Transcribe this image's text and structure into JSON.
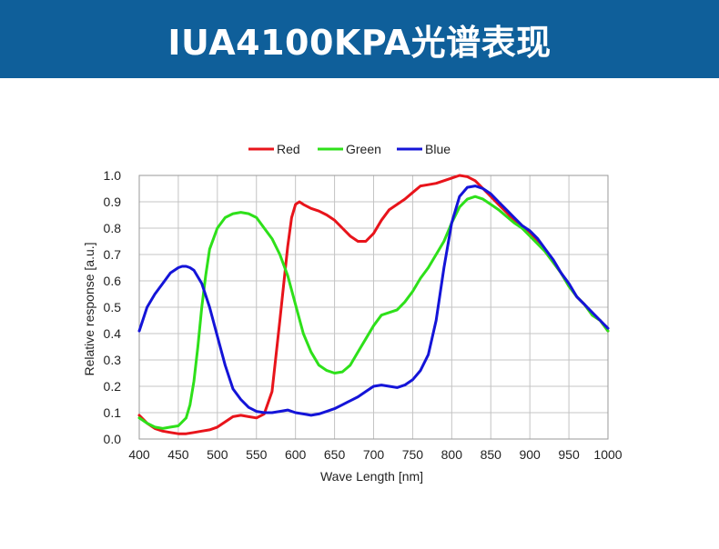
{
  "header": {
    "title": "IUA4100KPA光谱表现",
    "background_color": "#0f5f9a"
  },
  "chart_data": {
    "type": "line",
    "xlabel": "Wave Length [nm]",
    "ylabel": "Relative response [a.u.]",
    "xlim": [
      400,
      1000
    ],
    "ylim": [
      0.0,
      1.0
    ],
    "xticks": [
      400,
      450,
      500,
      550,
      600,
      650,
      700,
      750,
      800,
      850,
      900,
      950,
      1000
    ],
    "yticks": [
      "0.0",
      "0.1",
      "0.2",
      "0.3",
      "0.4",
      "0.5",
      "0.6",
      "0.7",
      "0.8",
      "0.9",
      "1.0"
    ],
    "grid": true,
    "legend_position": "top-center",
    "series": [
      {
        "name": "Red",
        "color": "#e8141b",
        "x": [
          400,
          410,
          420,
          430,
          440,
          450,
          460,
          470,
          480,
          490,
          500,
          510,
          520,
          530,
          540,
          550,
          560,
          570,
          580,
          590,
          595,
          600,
          605,
          610,
          620,
          630,
          640,
          650,
          660,
          670,
          680,
          690,
          700,
          710,
          720,
          730,
          740,
          750,
          760,
          770,
          780,
          790,
          800,
          810,
          820,
          830,
          840,
          850,
          860,
          870,
          880,
          890,
          900,
          910,
          920,
          930,
          940,
          950,
          960,
          970,
          980,
          990,
          1000
        ],
        "y": [
          0.09,
          0.06,
          0.04,
          0.03,
          0.025,
          0.02,
          0.02,
          0.025,
          0.03,
          0.035,
          0.045,
          0.065,
          0.085,
          0.09,
          0.085,
          0.08,
          0.095,
          0.18,
          0.45,
          0.73,
          0.84,
          0.89,
          0.9,
          0.89,
          0.875,
          0.865,
          0.85,
          0.83,
          0.8,
          0.77,
          0.75,
          0.75,
          0.78,
          0.83,
          0.87,
          0.89,
          0.91,
          0.935,
          0.96,
          0.965,
          0.97,
          0.98,
          0.99,
          1.0,
          0.995,
          0.98,
          0.95,
          0.92,
          0.89,
          0.86,
          0.83,
          0.8,
          0.78,
          0.75,
          0.71,
          0.67,
          0.63,
          0.58,
          0.54,
          0.51,
          0.47,
          0.45,
          0.41
        ]
      },
      {
        "name": "Green",
        "color": "#2ee01a",
        "x": [
          400,
          410,
          420,
          430,
          440,
          450,
          460,
          465,
          470,
          475,
          480,
          485,
          490,
          500,
          510,
          520,
          530,
          540,
          550,
          560,
          570,
          580,
          590,
          600,
          610,
          620,
          630,
          640,
          650,
          660,
          670,
          680,
          690,
          700,
          710,
          720,
          730,
          740,
          750,
          760,
          770,
          780,
          790,
          800,
          810,
          820,
          830,
          840,
          850,
          860,
          870,
          880,
          890,
          900,
          910,
          920,
          930,
          940,
          950,
          960,
          970,
          980,
          990,
          1000
        ],
        "y": [
          0.08,
          0.06,
          0.045,
          0.04,
          0.045,
          0.05,
          0.08,
          0.13,
          0.22,
          0.35,
          0.5,
          0.62,
          0.72,
          0.8,
          0.84,
          0.855,
          0.86,
          0.855,
          0.84,
          0.8,
          0.76,
          0.7,
          0.62,
          0.51,
          0.4,
          0.33,
          0.28,
          0.26,
          0.25,
          0.255,
          0.28,
          0.33,
          0.38,
          0.43,
          0.47,
          0.48,
          0.49,
          0.52,
          0.56,
          0.61,
          0.65,
          0.7,
          0.75,
          0.82,
          0.88,
          0.91,
          0.92,
          0.91,
          0.89,
          0.87,
          0.845,
          0.82,
          0.8,
          0.77,
          0.74,
          0.71,
          0.67,
          0.63,
          0.58,
          0.54,
          0.51,
          0.47,
          0.45,
          0.41
        ]
      },
      {
        "name": "Blue",
        "color": "#1414d8",
        "x": [
          400,
          410,
          420,
          430,
          440,
          450,
          455,
          460,
          465,
          470,
          480,
          490,
          500,
          510,
          520,
          530,
          540,
          550,
          560,
          570,
          580,
          590,
          600,
          610,
          620,
          630,
          640,
          650,
          660,
          670,
          680,
          690,
          700,
          710,
          720,
          730,
          740,
          750,
          760,
          770,
          780,
          790,
          800,
          810,
          820,
          830,
          840,
          850,
          860,
          870,
          880,
          890,
          900,
          910,
          920,
          930,
          940,
          950,
          960,
          970,
          980,
          990,
          1000
        ],
        "y": [
          0.41,
          0.5,
          0.55,
          0.59,
          0.63,
          0.65,
          0.655,
          0.655,
          0.65,
          0.64,
          0.59,
          0.5,
          0.39,
          0.28,
          0.19,
          0.15,
          0.12,
          0.105,
          0.1,
          0.1,
          0.105,
          0.11,
          0.1,
          0.095,
          0.09,
          0.095,
          0.105,
          0.115,
          0.13,
          0.145,
          0.16,
          0.18,
          0.2,
          0.205,
          0.2,
          0.195,
          0.205,
          0.225,
          0.26,
          0.32,
          0.45,
          0.65,
          0.82,
          0.92,
          0.955,
          0.96,
          0.95,
          0.93,
          0.9,
          0.87,
          0.84,
          0.81,
          0.79,
          0.76,
          0.72,
          0.68,
          0.63,
          0.59,
          0.54,
          0.51,
          0.48,
          0.45,
          0.42
        ]
      }
    ]
  }
}
